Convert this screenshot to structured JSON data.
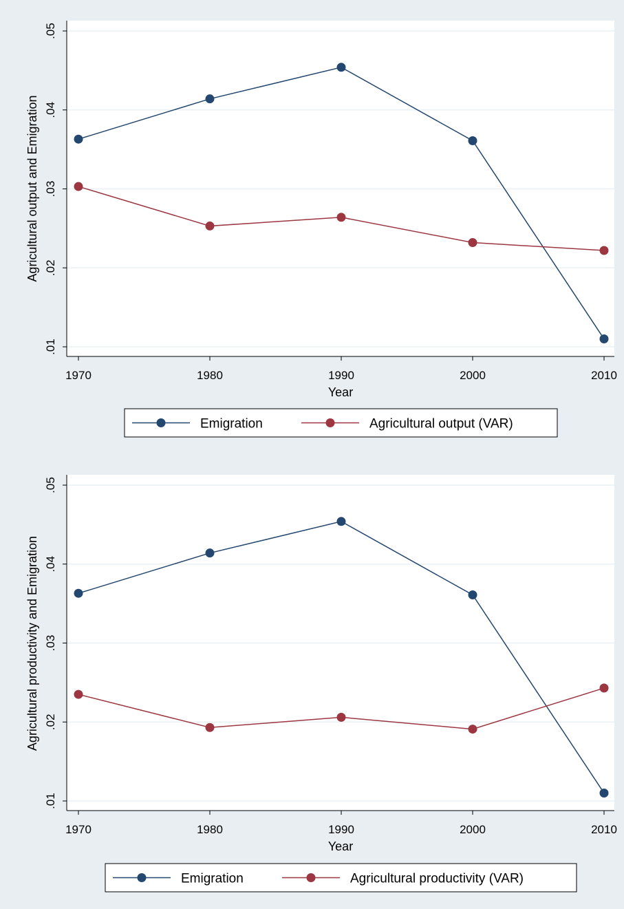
{
  "colors": {
    "page_background": "#e9eef2",
    "plot_background": "#ffffff",
    "grid": "#eaf0f3",
    "axis": "#000000",
    "emigration": "#24476f",
    "agricultural": "#9c3640"
  },
  "chart_data": [
    {
      "type": "line",
      "xlabel": "Year",
      "ylabel": "Agricultural output and Emigration",
      "x": [
        1970,
        1980,
        1990,
        2000,
        2010
      ],
      "xticks": [
        "1970",
        "1980",
        "1990",
        "2000",
        "2010"
      ],
      "ylim": [
        0.01,
        0.05
      ],
      "yticks": [
        0.01,
        0.02,
        0.03,
        0.04,
        0.05
      ],
      "ytick_labels": [
        ".01",
        ".02",
        ".03",
        ".04",
        ".05"
      ],
      "grid": true,
      "legend_position": "bottom",
      "series": [
        {
          "name": "Emigration",
          "color": "#24476f",
          "marker": "circle",
          "values": [
            0.0363,
            0.0414,
            0.0454,
            0.0361,
            0.011
          ]
        },
        {
          "name": "Agricultural output (VAR)",
          "color": "#9c3640",
          "marker": "circle",
          "values": [
            0.0303,
            0.0253,
            0.0264,
            0.0232,
            0.0222
          ]
        }
      ]
    },
    {
      "type": "line",
      "xlabel": "Year",
      "ylabel": "Agricultural productivity and Emigration",
      "x": [
        1970,
        1980,
        1990,
        2000,
        2010
      ],
      "xticks": [
        "1970",
        "1980",
        "1990",
        "2000",
        "2010"
      ],
      "ylim": [
        0.01,
        0.05
      ],
      "yticks": [
        0.01,
        0.02,
        0.03,
        0.04,
        0.05
      ],
      "ytick_labels": [
        ".01",
        ".02",
        ".03",
        ".04",
        ".05"
      ],
      "grid": true,
      "legend_position": "bottom",
      "series": [
        {
          "name": "Emigration",
          "color": "#24476f",
          "marker": "circle",
          "values": [
            0.0363,
            0.0414,
            0.0454,
            0.0361,
            0.011
          ]
        },
        {
          "name": "Agricultural productivity (VAR)",
          "color": "#9c3640",
          "marker": "circle",
          "values": [
            0.0235,
            0.0193,
            0.0206,
            0.0191,
            0.0243
          ]
        }
      ]
    }
  ]
}
